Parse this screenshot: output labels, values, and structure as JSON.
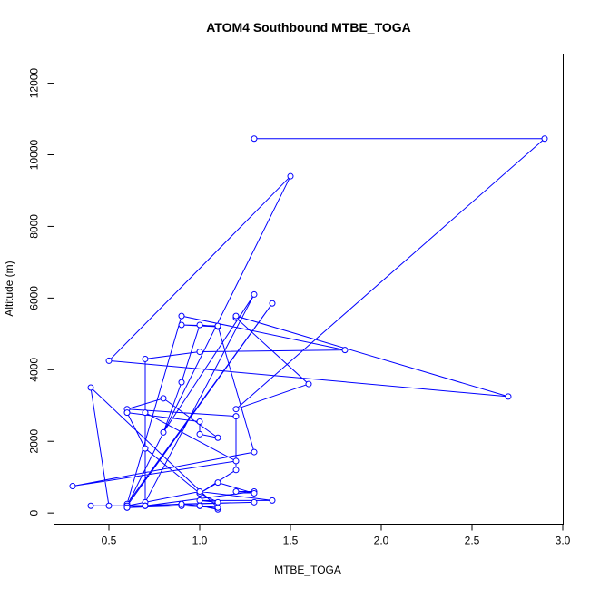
{
  "chart_data": {
    "type": "line",
    "title": "ATOM4 Southbound MTBE_TOGA",
    "xlabel": "MTBE_TOGA",
    "ylabel": "Altitude (m)",
    "xlim": [
      0.2,
      3.0
    ],
    "ylim": [
      -300,
      12800
    ],
    "x_ticks": [
      0.5,
      1.0,
      1.5,
      2.0,
      2.5,
      3.0
    ],
    "x_tick_labels": [
      "0.5",
      "1.0",
      "1.5",
      "2.0",
      "2.5",
      "3.0"
    ],
    "y_ticks": [
      0,
      2000,
      4000,
      6000,
      8000,
      10000,
      12000
    ],
    "y_tick_labels": [
      "0",
      "2000",
      "4000",
      "6000",
      "8000",
      "10000",
      "12000"
    ],
    "grid": false,
    "markers": "open-circle",
    "series": [
      {
        "color": "#0000ff",
        "x": [
          1.3,
          2.9,
          1.2,
          1.6,
          1.2,
          1.2,
          2.7,
          0.5,
          1.5,
          0.6,
          1.4,
          0.6,
          0.9,
          1.8,
          1.0,
          0.7,
          0.7,
          1.3,
          0.8,
          0.9,
          1.0,
          1.1,
          0.9,
          1.1,
          1.3,
          0.3,
          1.2,
          0.7,
          0.7,
          1.3,
          1.2,
          1.3,
          1.1,
          1.0,
          1.2,
          1.2,
          0.6,
          0.8,
          1.1,
          1.0,
          1.0,
          0.6,
          0.7,
          1.0,
          1.1,
          1.0,
          1.4,
          1.0,
          0.6,
          1.3,
          0.9,
          0.6,
          0.9,
          1.0,
          1.1,
          1.0,
          0.9,
          1.1,
          0.4,
          0.5,
          0.4,
          0.7,
          0.6,
          0.9,
          1.1,
          1.0,
          0.9,
          0.7,
          0.6
        ],
        "y": [
          10450,
          10450,
          2900,
          3600,
          5450,
          5500,
          3250,
          4250,
          9400,
          200,
          5850,
          250,
          5500,
          4550,
          4500,
          4300,
          300,
          6100,
          2250,
          3650,
          5250,
          5200,
          5250,
          5220,
          1700,
          750,
          1450,
          2800,
          200,
          600,
          600,
          550,
          850,
          550,
          1200,
          2700,
          2900,
          3200,
          2100,
          2200,
          2550,
          2800,
          1800,
          550,
          300,
          350,
          350,
          600,
          200,
          300,
          250,
          150,
          200,
          200,
          100,
          200,
          200,
          150,
          3500,
          200,
          200,
          200,
          200,
          200,
          150,
          200,
          250,
          200,
          150
        ]
      }
    ]
  }
}
